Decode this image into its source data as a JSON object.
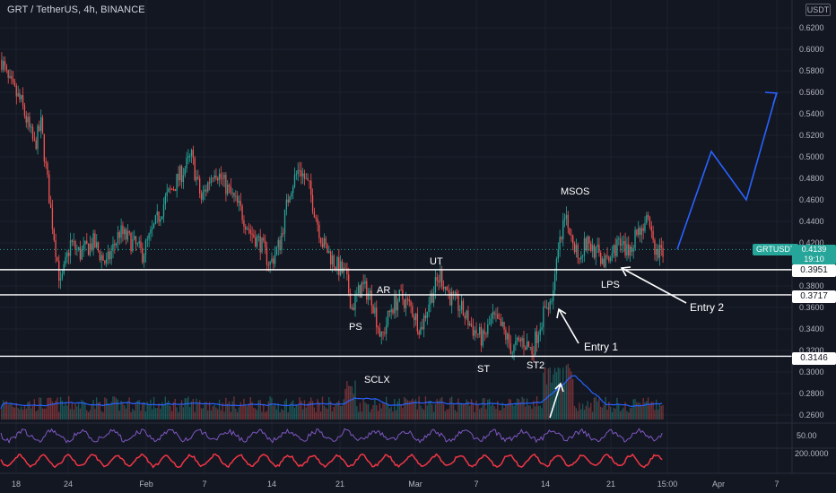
{
  "header": {
    "title": "GRT / TetherUS, 4h, BINANCE"
  },
  "unit_badge": "USDT",
  "colors": {
    "background": "#131722",
    "bull": "#26a69a",
    "bear": "#ef5350",
    "forecast": "#2962ff",
    "rsi": "#7e57c2",
    "osc": "#f23645",
    "volume_ma": "#2962ff"
  },
  "price_axis": {
    "ticks": [
      "0.6200",
      "0.6000",
      "0.5800",
      "0.5600",
      "0.5400",
      "0.5200",
      "0.5000",
      "0.4800",
      "0.4600",
      "0.4400",
      "0.4200",
      "0.3800",
      "0.3600",
      "0.3400",
      "0.3200",
      "0.3000",
      "0.2800",
      "0.2600"
    ]
  },
  "time_axis": {
    "ticks": [
      "18",
      "24",
      "Feb",
      "7",
      "14",
      "21",
      "Mar",
      "7",
      "14",
      "21",
      "15:00",
      "Apr",
      "7"
    ]
  },
  "levels": [
    {
      "value": 0.3951,
      "label": "0.3951"
    },
    {
      "value": 0.3717,
      "label": "0.3717"
    },
    {
      "value": 0.3146,
      "label": "0.3146"
    }
  ],
  "current": {
    "symbol": "GRTUSDT",
    "price": "0.4139",
    "countdown": "19:10"
  },
  "annotations": {
    "ps": "PS",
    "sclx": "SCLX",
    "ar": "AR",
    "ut": "UT",
    "st": "ST",
    "st2": "ST2",
    "msos": "MSOS",
    "lps": "LPS",
    "entry1": "Entry 1",
    "entry2": "Entry 2"
  },
  "indicators": {
    "rsi_label": "50.00",
    "osc_label": "200.0000"
  },
  "chart_data": {
    "type": "line",
    "title": "GRT / TetherUS, 4h, BINANCE",
    "xlabel": "",
    "ylabel": "",
    "x": [
      "Jan 18",
      "Jan 24",
      "Feb 1",
      "Feb 7",
      "Feb 14",
      "Feb 21",
      "Mar 1",
      "Mar 7",
      "Mar 14",
      "Mar 21",
      "Mar 25"
    ],
    "series": [
      {
        "values": [
          0.59,
          0.385,
          0.41,
          0.5,
          0.48,
          0.36,
          0.38,
          0.325,
          0.355,
          0.41,
          0.414
        ]
      }
    ],
    "ylim": [
      0.26,
      0.63
    ],
    "forecast": [
      0.414,
      0.505,
      0.46,
      0.56
    ],
    "horizontal_levels": [
      0.3951,
      0.3717,
      0.3146
    ],
    "last_price": 0.4139
  }
}
